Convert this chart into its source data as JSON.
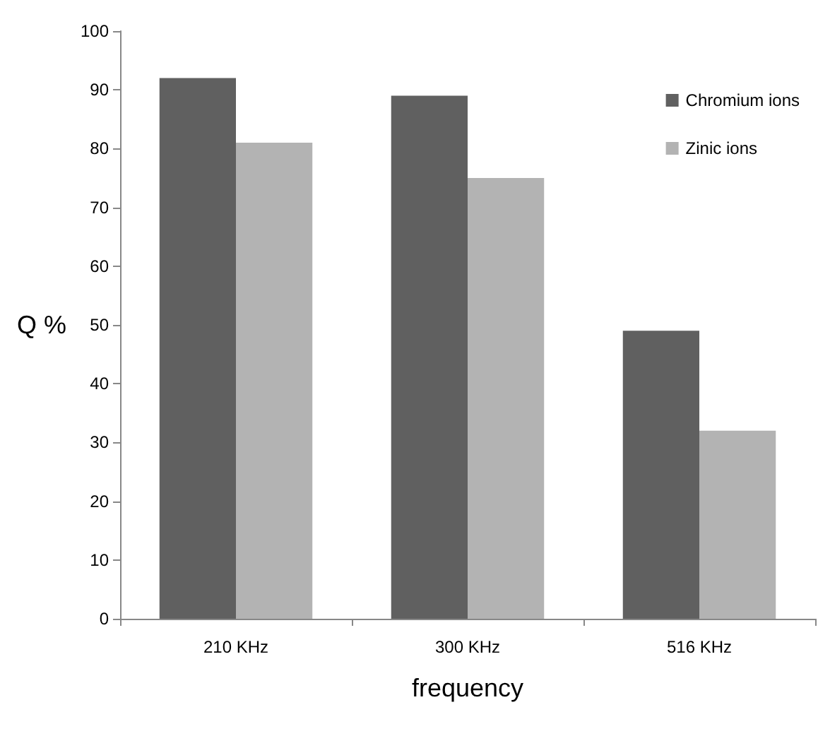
{
  "chart_data": {
    "type": "bar",
    "xlabel": "frequency",
    "ylabel": "Q %",
    "categories": [
      "210 KHz",
      "300 KHz",
      "516 KHz"
    ],
    "series": [
      {
        "name": "Chromium ions",
        "color": "#606060",
        "values": [
          92,
          89,
          49
        ]
      },
      {
        "name": "Zinic ions",
        "color": "#b3b3b3",
        "values": [
          81,
          75,
          32
        ]
      }
    ],
    "ylim": [
      0,
      100
    ],
    "yticks": [
      0,
      10,
      20,
      30,
      40,
      50,
      60,
      70,
      80,
      90,
      100
    ],
    "grid": false,
    "legend": "top right"
  }
}
